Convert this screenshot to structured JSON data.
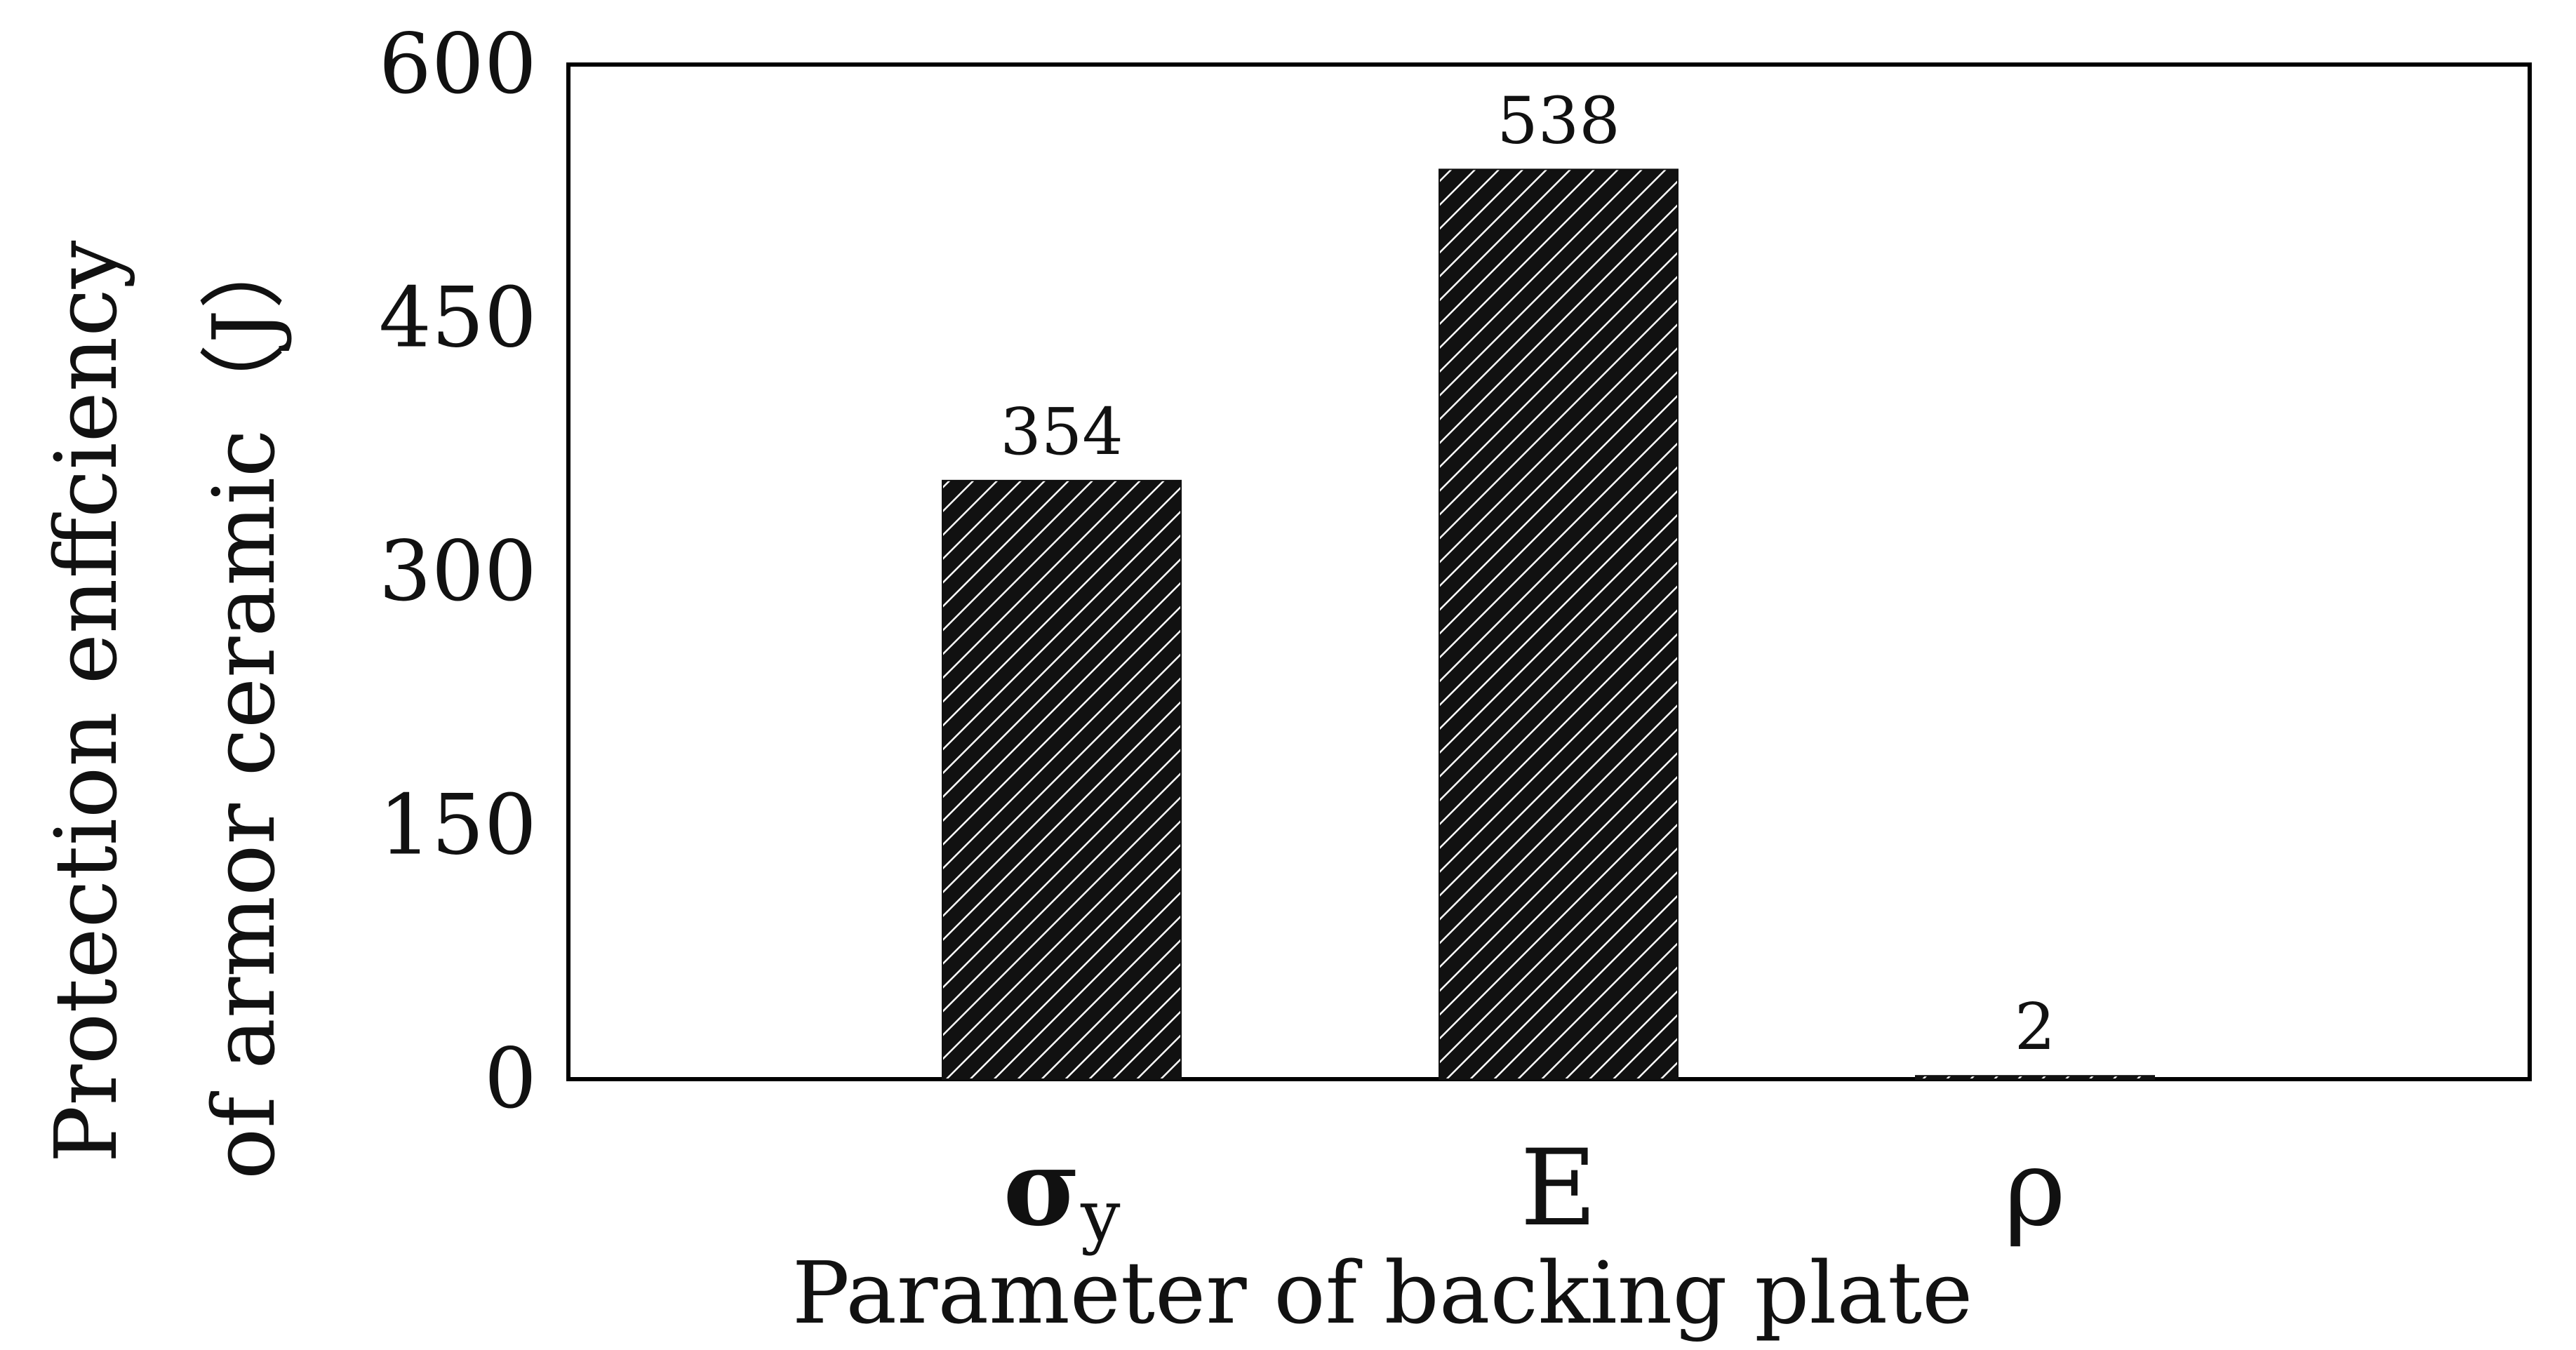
{
  "chart_data": {
    "type": "bar",
    "categories": [
      "σ",
      "E",
      "ρ"
    ],
    "category_subscripts": [
      "y",
      "",
      ""
    ],
    "values": [
      354,
      538,
      2
    ],
    "data_labels": [
      "354",
      "538",
      "2"
    ],
    "title": "",
    "xlabel": "Parameter of backing plate",
    "ylabel_lines": [
      "Protection enffciency",
      "of armor ceramic（J）"
    ],
    "ylim": [
      0,
      600
    ],
    "yticks": [
      0,
      150,
      300,
      450,
      600
    ],
    "grid": false,
    "bar_fill": "#111111",
    "hatch": "diagonal-white",
    "colors": {
      "axis": "#000000",
      "bar": "#111111",
      "hatch_line": "#ffffff"
    }
  }
}
